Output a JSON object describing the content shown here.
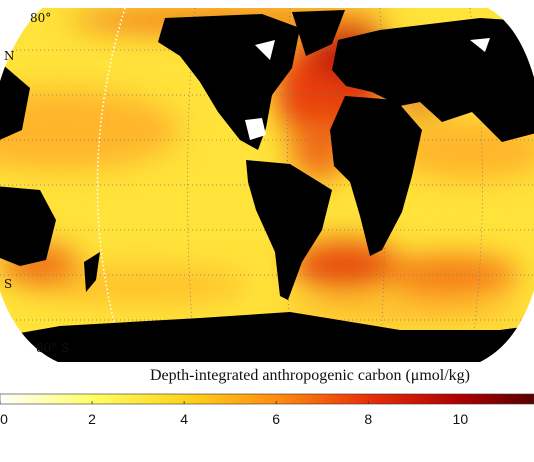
{
  "map": {
    "labels": [
      "80°",
      "N",
      "S",
      "80° S"
    ]
  },
  "colorbar": {
    "title": "Depth-integrated anthropogenic carbon (μmol/kg)",
    "range": [
      0,
      11.6
    ],
    "ticks": [
      0,
      2,
      4,
      6,
      8,
      10
    ]
  }
}
